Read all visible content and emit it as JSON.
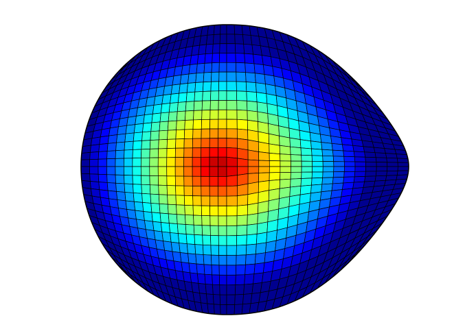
{
  "figure": {
    "description_kind": "3d-surface-render",
    "colormap": [
      "#00008f",
      "#0000ff",
      "#0080ff",
      "#00ffff",
      "#80ff80",
      "#ffff00",
      "#ff8000",
      "#ff0000",
      "#800000"
    ],
    "grid_line_color": "#000000",
    "background_color": "#ffffff"
  }
}
